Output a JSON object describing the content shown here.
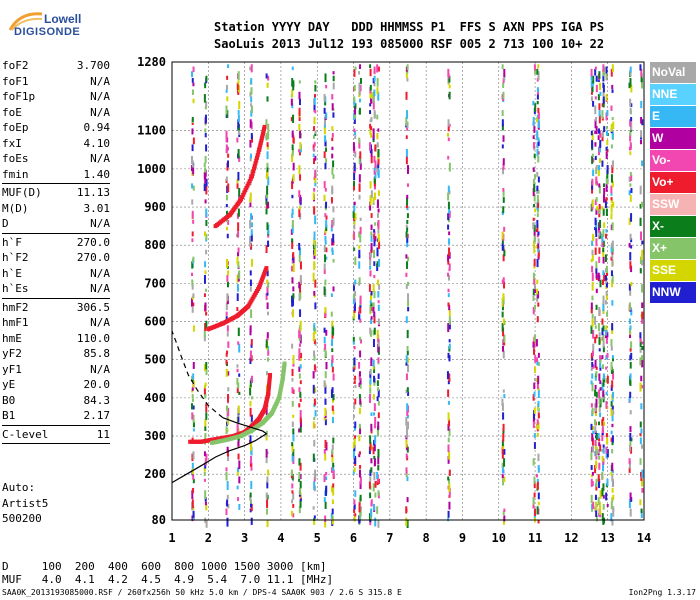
{
  "logo": {
    "line1": "Lowell",
    "line2": "DIGISONDE"
  },
  "header": {
    "line1": "Station YYYY DAY   DDD HHMMSS P1  FFS S AXN PPS IGA PS",
    "line2": "SaoLuis 2013 Jul12 193 085000 RSF 005 2 713 100 10+ 22"
  },
  "params": {
    "group1": [
      {
        "k": "foF2",
        "v": "3.700"
      },
      {
        "k": "foF1",
        "v": "N/A"
      },
      {
        "k": "foF1p",
        "v": "N/A"
      },
      {
        "k": "foE",
        "v": "N/A"
      },
      {
        "k": "foEp",
        "v": "0.94"
      },
      {
        "k": "fxI",
        "v": "4.10"
      },
      {
        "k": "foEs",
        "v": "N/A"
      },
      {
        "k": "fmin",
        "v": "1.40"
      }
    ],
    "group2": [
      {
        "k": "MUF(D)",
        "v": "11.13"
      },
      {
        "k": "M(D)",
        "v": "3.01"
      },
      {
        "k": "D",
        "v": "N/A"
      }
    ],
    "group3": [
      {
        "k": "h`F",
        "v": "270.0"
      },
      {
        "k": "h`F2",
        "v": "270.0"
      },
      {
        "k": "h`E",
        "v": "N/A"
      },
      {
        "k": "h`Es",
        "v": "N/A"
      }
    ],
    "group4": [
      {
        "k": "hmF2",
        "v": "306.5"
      },
      {
        "k": "hmF1",
        "v": "N/A"
      },
      {
        "k": "hmE",
        "v": "110.0"
      },
      {
        "k": "yF2",
        "v": "85.8"
      },
      {
        "k": "yF1",
        "v": "N/A"
      },
      {
        "k": "yE",
        "v": "20.0"
      },
      {
        "k": "B0",
        "v": "84.3"
      },
      {
        "k": "B1",
        "v": "2.17"
      }
    ],
    "group5": [
      {
        "k": "C-level",
        "v": "11"
      }
    ]
  },
  "auto": {
    "line1": "Auto:",
    "line2": "Artist5",
    "line3": "500200"
  },
  "footer": {
    "line1": "D     100  200  400  600  800 1000 1500 3000 [km]",
    "line2": "MUF   4.0  4.1  4.2  4.5  4.9  5.4  7.0 11.1 [MHz]"
  },
  "footnote": "SAA0K_2013193085000.RSF / 260fx256h 50 kHz 5.0 km / DPS-4 SAA0K 903 / 2.6 S 315.8 E",
  "version": "Ion2Png 1.3.17",
  "legend": [
    {
      "label": "NoVal",
      "color": "#a8a8a8"
    },
    {
      "label": "NNE",
      "color": "#5ad2ff"
    },
    {
      "label": "E",
      "color": "#36b8f5"
    },
    {
      "label": "W",
      "color": "#b0009f"
    },
    {
      "label": "Vo-",
      "color": "#f246b0"
    },
    {
      "label": "Vo+",
      "color": "#ee1c2d"
    },
    {
      "label": "SSW",
      "color": "#f6b3b3"
    },
    {
      "label": "X-",
      "color": "#0b7d1b"
    },
    {
      "label": "X+",
      "color": "#86c46a"
    },
    {
      "label": "SSE",
      "color": "#d3d600"
    },
    {
      "label": "NNW",
      "color": "#2020d0"
    }
  ],
  "chart_data": {
    "type": "scatter",
    "title": "",
    "xlabel": "",
    "ylabel": "",
    "xlim": [
      1,
      14
    ],
    "ylim": [
      80,
      1280
    ],
    "x_ticks": [
      "1",
      "2",
      "3",
      "4",
      "5",
      "6",
      "7",
      "8",
      "9",
      "10",
      "11",
      "12",
      "13",
      "14"
    ],
    "y_ticks": [
      "80",
      "200",
      "300",
      "400",
      "500",
      "600",
      "700",
      "800",
      "900",
      "1000",
      "1100",
      "1280"
    ],
    "grid": true,
    "traces": [
      {
        "name": "F2 O-trace",
        "color": "#ee1c2d",
        "points": [
          [
            1.5,
            285
          ],
          [
            1.8,
            285
          ],
          [
            2.1,
            290
          ],
          [
            2.4,
            295
          ],
          [
            2.7,
            300
          ],
          [
            3.0,
            310
          ],
          [
            3.2,
            325
          ],
          [
            3.4,
            345
          ],
          [
            3.55,
            370
          ],
          [
            3.65,
            410
          ],
          [
            3.7,
            460
          ]
        ]
      },
      {
        "name": "F2 X-trace",
        "color": "#86c46a",
        "points": [
          [
            2.1,
            282
          ],
          [
            2.5,
            290
          ],
          [
            2.9,
            300
          ],
          [
            3.2,
            315
          ],
          [
            3.5,
            335
          ],
          [
            3.75,
            360
          ],
          [
            3.95,
            400
          ],
          [
            4.05,
            450
          ],
          [
            4.1,
            490
          ]
        ]
      },
      {
        "name": "2F2 O-trace",
        "color": "#ee1c2d",
        "points": [
          [
            2.0,
            580
          ],
          [
            2.4,
            595
          ],
          [
            2.8,
            615
          ],
          [
            3.1,
            640
          ],
          [
            3.4,
            690
          ],
          [
            3.6,
            740
          ]
        ]
      },
      {
        "name": "3F2 O-trace",
        "color": "#ee1c2d",
        "points": [
          [
            2.2,
            850
          ],
          [
            2.6,
            880
          ],
          [
            2.9,
            920
          ],
          [
            3.2,
            980
          ],
          [
            3.4,
            1050
          ],
          [
            3.55,
            1110
          ]
        ]
      },
      {
        "name": "profile",
        "color": "#000000",
        "points": [
          [
            1.0,
            178
          ],
          [
            1.4,
            200
          ],
          [
            1.8,
            222
          ],
          [
            2.2,
            245
          ],
          [
            2.6,
            262
          ],
          [
            3.0,
            275
          ],
          [
            3.3,
            288
          ],
          [
            3.5,
            300
          ],
          [
            3.6,
            306
          ],
          [
            3.5,
            313
          ],
          [
            3.2,
            322
          ],
          [
            2.8,
            334
          ],
          [
            2.4,
            348
          ]
        ]
      },
      {
        "name": "profile-extrapolated",
        "color": "#000000",
        "points": [
          [
            2.4,
            348
          ],
          [
            2.0,
            380
          ],
          [
            1.7,
            420
          ],
          [
            1.45,
            460
          ],
          [
            1.25,
            510
          ],
          [
            1.1,
            550
          ],
          [
            1.0,
            575
          ]
        ]
      }
    ],
    "noise_columns_mhz": [
      1.55,
      1.9,
      2.5,
      2.8,
      3.15,
      3.6,
      4.3,
      4.5,
      4.9,
      5.2,
      5.4,
      6.0,
      6.15,
      6.45,
      6.55,
      6.65,
      7.45,
      8.6,
      10.1,
      10.95,
      11.05,
      12.55,
      12.65,
      12.75,
      12.85,
      12.95,
      13.1,
      13.6,
      13.9
    ],
    "d_km": [
      100,
      200,
      400,
      600,
      800,
      1000,
      1500,
      3000
    ],
    "muf_mhz": [
      4.0,
      4.1,
      4.2,
      4.5,
      4.9,
      5.4,
      7.0,
      11.1
    ]
  }
}
